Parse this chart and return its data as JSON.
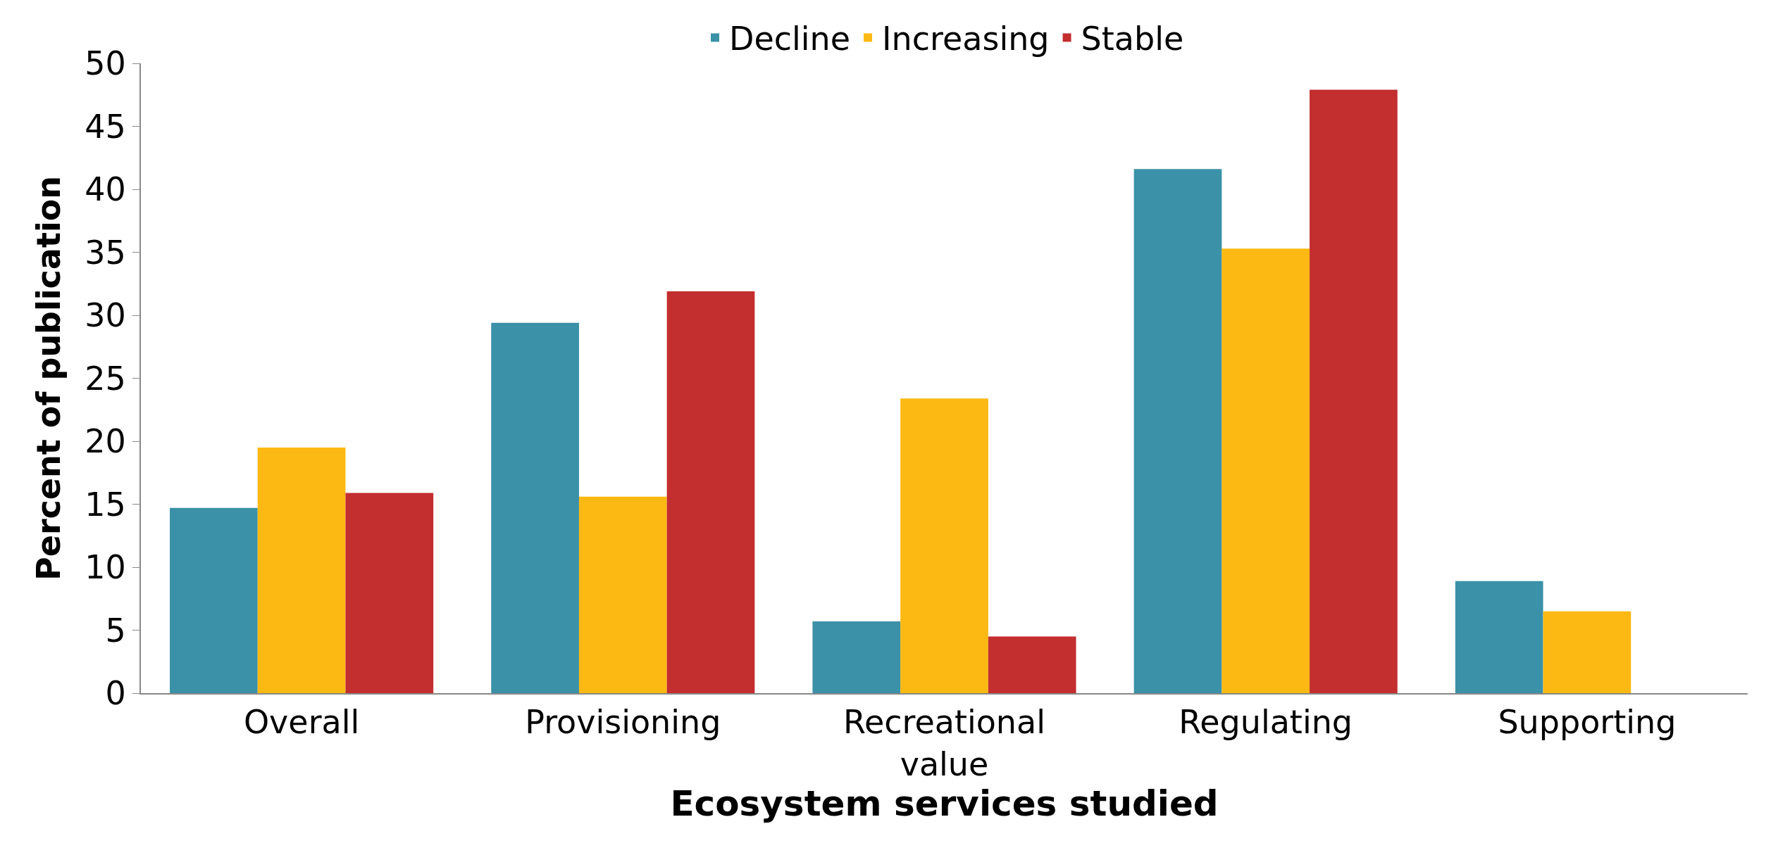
{
  "chart_data": {
    "type": "bar",
    "xlabel": "Ecosystem services studied",
    "ylabel": "Percent of publication",
    "categories": [
      "Overall",
      "Provisioning",
      "Recreational value",
      "Regulating",
      "Supporting"
    ],
    "series": [
      {
        "name": "Decline",
        "color": "#3a91a8",
        "values": [
          14.7,
          29.4,
          5.7,
          41.6,
          8.9
        ]
      },
      {
        "name": "Increasing",
        "color": "#fdb913",
        "values": [
          19.5,
          15.6,
          23.4,
          35.3,
          6.5
        ]
      },
      {
        "name": "Stable",
        "color": "#c32e2f",
        "values": [
          15.9,
          31.9,
          4.5,
          47.9,
          0
        ]
      }
    ],
    "ylim": [
      0,
      50
    ],
    "yticks": [
      0,
      5,
      10,
      15,
      20,
      25,
      30,
      35,
      40,
      45,
      50
    ],
    "legend": "top"
  }
}
